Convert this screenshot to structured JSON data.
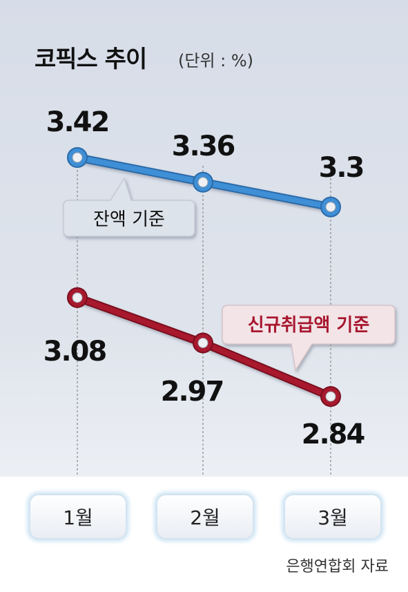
{
  "title": "코픽스 추이",
  "unit": "(단위 : %)",
  "source": "은행연합회 자료",
  "chart_data": {
    "type": "line",
    "title": "코픽스 추이",
    "ylabel": "(단위 : %)",
    "categories": [
      "1월",
      "2월",
      "3월"
    ],
    "ylim": [
      2.7,
      3.5
    ],
    "grid": false,
    "series": [
      {
        "name": "잔액 기준",
        "values": [
          3.42,
          3.36,
          3.3
        ],
        "labels": [
          "3.42",
          "3.36",
          "3.3"
        ],
        "color": "#3f8fd6"
      },
      {
        "name": "신규취급액 기준",
        "values": [
          3.08,
          2.97,
          2.84
        ],
        "labels": [
          "3.08",
          "2.97",
          "2.84"
        ],
        "color": "#a8192e"
      }
    ]
  }
}
